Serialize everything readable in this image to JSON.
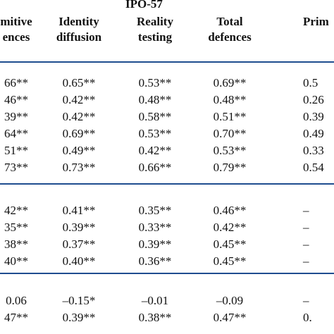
{
  "table": {
    "group_title": "IPO-57",
    "headers": [
      {
        "line1": "mitive",
        "line2": "ences"
      },
      {
        "line1": "Identity",
        "line2": "diffusion"
      },
      {
        "line1": "Reality",
        "line2": "testing"
      },
      {
        "line1": "Total",
        "line2": "defences"
      },
      {
        "line1": "Prim",
        "line2": ""
      }
    ],
    "sections": [
      {
        "rows": [
          [
            "66**",
            "0.65**",
            "0.53**",
            "0.69**",
            "0.5"
          ],
          [
            "46**",
            "0.42**",
            "0.48**",
            "0.48**",
            "0.26"
          ],
          [
            "39**",
            "0.42**",
            "0.58**",
            "0.51**",
            "0.39"
          ],
          [
            "64**",
            "0.69**",
            "0.53**",
            "0.70**",
            "0.49"
          ],
          [
            "51**",
            "0.49**",
            "0.42**",
            "0.53**",
            "0.33"
          ],
          [
            "73**",
            "0.73**",
            "0.66**",
            "0.79**",
            "0.54"
          ]
        ]
      },
      {
        "rows": [
          [
            "42**",
            "0.41**",
            "0.35**",
            "0.46**",
            "–"
          ],
          [
            "35**",
            "0.39**",
            "0.33**",
            "0.42**",
            "–"
          ],
          [
            "38**",
            "0.37**",
            "0.39**",
            "0.45**",
            "–"
          ],
          [
            "40**",
            "0.40**",
            "0.36**",
            "0.45**",
            "–"
          ]
        ]
      },
      {
        "rows": [
          [
            "0.06",
            "–0.15*",
            "–0.01",
            "–0.09",
            "–"
          ],
          [
            "47**",
            "0.39**",
            "0.38**",
            "0.47**",
            "0."
          ]
        ]
      }
    ]
  }
}
